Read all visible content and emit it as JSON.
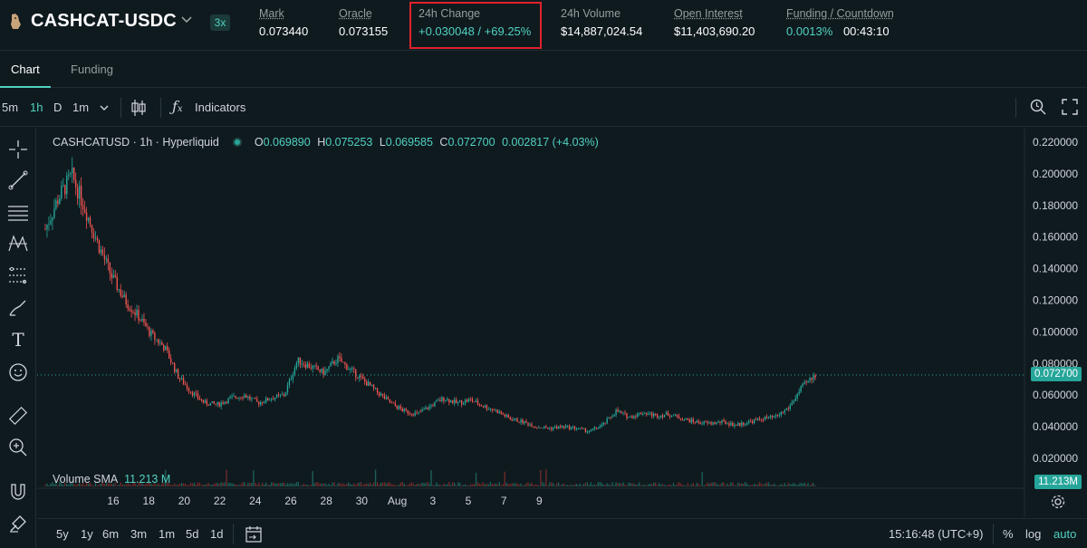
{
  "header": {
    "pair": "CASHCAT-USDC",
    "leverage": "3x",
    "stats": [
      {
        "label": "Mark",
        "value": "0.073440"
      },
      {
        "label": "Oracle",
        "value": "0.073155"
      },
      {
        "label": "24h Change",
        "value": "+0.030048 / +69.25%"
      },
      {
        "label": "24h Volume",
        "value": "$14,887,024.54"
      },
      {
        "label": "Open Interest",
        "value": "$11,403,690.20"
      },
      {
        "label": "Funding / Countdown",
        "funding": "0.0013%",
        "countdown": "00:43:10"
      }
    ]
  },
  "tabs": [
    "Chart",
    "Funding"
  ],
  "toolbar": {
    "intervals": [
      "5m",
      "1h",
      "D",
      "1m"
    ],
    "active_interval": "1h",
    "indicators_label": "Indicators"
  },
  "chart": {
    "symbol": "CASHCATUSD · 1h · Hyperliquid",
    "ohlc": {
      "O": "0.069890",
      "H": "0.075253",
      "L": "0.069585",
      "C": "0.072700",
      "change": "0.002817 (+4.03%)"
    },
    "volume_label": "Volume SMA",
    "volume_value": "11.213 M",
    "last_price": "0.072700",
    "volume_tag": "11.213M"
  },
  "chart_data": {
    "type": "candlestick",
    "y_ticks": [
      "0.220000",
      "0.200000",
      "0.180000",
      "0.160000",
      "0.140000",
      "0.120000",
      "0.100000",
      "0.080000",
      "0.060000",
      "0.040000",
      "0.020000"
    ],
    "ylim": [
      0.02,
      0.22
    ],
    "x_ticks": [
      "16",
      "18",
      "20",
      "22",
      "24",
      "26",
      "28",
      "30",
      "Aug",
      "3",
      "5",
      "7",
      "9"
    ],
    "last_price": 0.0727,
    "price_path": [
      [
        0,
        0.165
      ],
      [
        1,
        0.185
      ],
      [
        2,
        0.199
      ],
      [
        3,
        0.178
      ],
      [
        4,
        0.155
      ],
      [
        5,
        0.135
      ],
      [
        6,
        0.12
      ],
      [
        7,
        0.11
      ],
      [
        8,
        0.098
      ],
      [
        9,
        0.09
      ],
      [
        10,
        0.072
      ],
      [
        11,
        0.062
      ],
      [
        12,
        0.055
      ],
      [
        13,
        0.054
      ],
      [
        14,
        0.058
      ],
      [
        15,
        0.06
      ],
      [
        16,
        0.055
      ],
      [
        17,
        0.058
      ],
      [
        18,
        0.06
      ],
      [
        19,
        0.082
      ],
      [
        20,
        0.078
      ],
      [
        21,
        0.074
      ],
      [
        22,
        0.083
      ],
      [
        23,
        0.076
      ],
      [
        24,
        0.069
      ],
      [
        25,
        0.062
      ],
      [
        26,
        0.055
      ],
      [
        27,
        0.05
      ],
      [
        28,
        0.048
      ],
      [
        29,
        0.053
      ],
      [
        30,
        0.058
      ],
      [
        31,
        0.055
      ],
      [
        32,
        0.057
      ],
      [
        33,
        0.053
      ],
      [
        34,
        0.05
      ],
      [
        35,
        0.045
      ],
      [
        36,
        0.043
      ],
      [
        37,
        0.04
      ],
      [
        38,
        0.039
      ],
      [
        39,
        0.04
      ],
      [
        40,
        0.039
      ],
      [
        41,
        0.037
      ],
      [
        42,
        0.041
      ],
      [
        43,
        0.05
      ],
      [
        44,
        0.046
      ],
      [
        45,
        0.049
      ],
      [
        46,
        0.047
      ],
      [
        47,
        0.048
      ],
      [
        48,
        0.045
      ],
      [
        49,
        0.043
      ],
      [
        50,
        0.042
      ],
      [
        51,
        0.043
      ],
      [
        52,
        0.041
      ],
      [
        53,
        0.043
      ],
      [
        54,
        0.045
      ],
      [
        55,
        0.046
      ],
      [
        56,
        0.052
      ],
      [
        57,
        0.065
      ],
      [
        58,
        0.0727
      ]
    ],
    "volume_label": "Volume SMA",
    "volume_value": "11.213 M"
  },
  "bottombar": {
    "ranges": [
      "5y",
      "1y",
      "6m",
      "3m",
      "1m",
      "5d",
      "1d"
    ],
    "time": "15:16:48 (UTC+9)",
    "pct": "%",
    "log": "log",
    "auto": "auto"
  },
  "colors": {
    "background": "#0f1a1f",
    "up": "#26a69a",
    "down": "#ef5350",
    "accent": "#50d2c1",
    "highlight_box": "#e0222b"
  }
}
